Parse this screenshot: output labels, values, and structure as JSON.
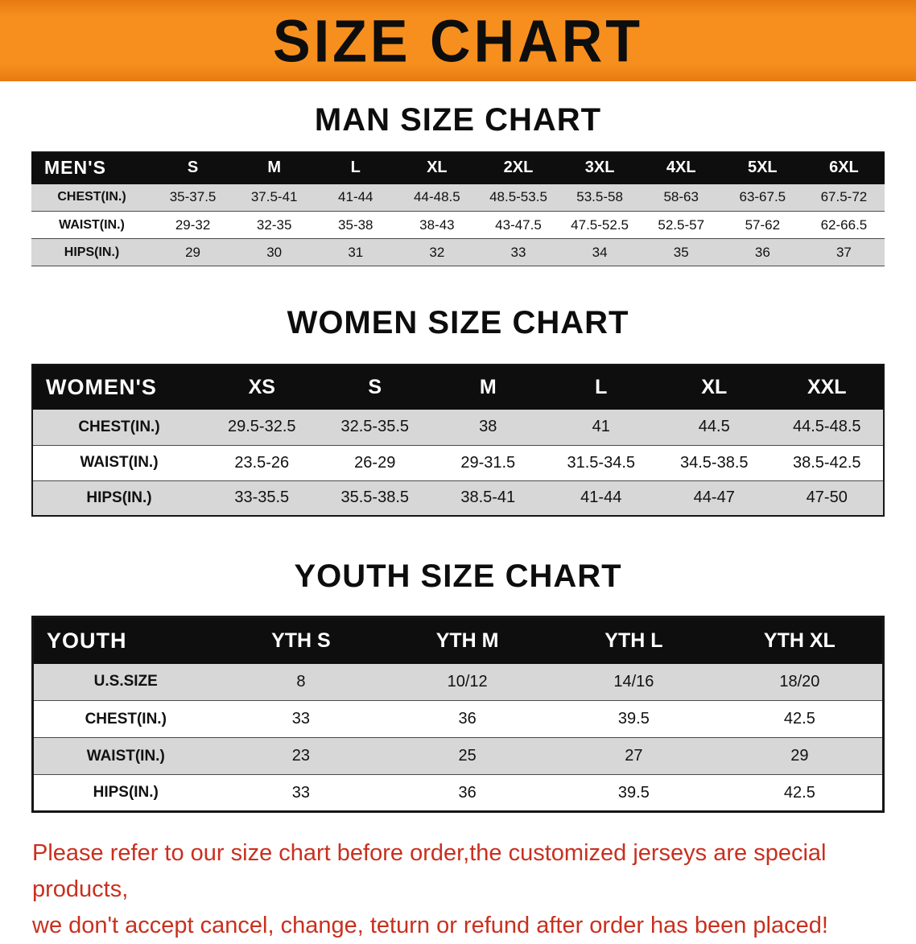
{
  "banner": {
    "title": "SIZE CHART",
    "background_color": "#f78f1e",
    "text_color": "#0d0d0d"
  },
  "chart_data": [
    {
      "type": "table",
      "title": "MAN SIZE CHART",
      "columns": [
        "MEN'S",
        "S",
        "M",
        "L",
        "XL",
        "2XL",
        "3XL",
        "4XL",
        "5XL",
        "6XL"
      ],
      "rows": [
        [
          "CHEST(IN.)",
          "35-37.5",
          "37.5-41",
          "41-44",
          "44-48.5",
          "48.5-53.5",
          "53.5-58",
          "58-63",
          "63-67.5",
          "67.5-72"
        ],
        [
          "WAIST(IN.)",
          "29-32",
          "32-35",
          "35-38",
          "38-43",
          "43-47.5",
          "47.5-52.5",
          "52.5-57",
          "57-62",
          "62-66.5"
        ],
        [
          "HIPS(IN.)",
          "29",
          "30",
          "31",
          "32",
          "33",
          "34",
          "35",
          "36",
          "37"
        ]
      ]
    },
    {
      "type": "table",
      "title": "WOMEN SIZE CHART",
      "columns": [
        "WOMEN'S",
        "XS",
        "S",
        "M",
        "L",
        "XL",
        "XXL"
      ],
      "rows": [
        [
          "CHEST(IN.)",
          "29.5-32.5",
          "32.5-35.5",
          "38",
          "41",
          "44.5",
          "44.5-48.5"
        ],
        [
          "WAIST(IN.)",
          "23.5-26",
          "26-29",
          "29-31.5",
          "31.5-34.5",
          "34.5-38.5",
          "38.5-42.5"
        ],
        [
          "HIPS(IN.)",
          "33-35.5",
          "35.5-38.5",
          "38.5-41",
          "41-44",
          "44-47",
          "47-50"
        ]
      ]
    },
    {
      "type": "table",
      "title": "YOUTH SIZE CHART",
      "columns": [
        "YOUTH",
        "YTH S",
        "YTH M",
        "YTH L",
        "YTH XL"
      ],
      "rows": [
        [
          "U.S.SIZE",
          "8",
          "10/12",
          "14/16",
          "18/20"
        ],
        [
          "CHEST(IN.)",
          "33",
          "36",
          "39.5",
          "42.5"
        ],
        [
          "WAIST(IN.)",
          "23",
          "25",
          "27",
          "29"
        ],
        [
          "HIPS(IN.)",
          "33",
          "36",
          "39.5",
          "42.5"
        ]
      ]
    }
  ],
  "footer": {
    "text_color": "#c9301f",
    "line1": "Please refer to our size chart before order,the customized jerseys are special products,",
    "line2": "we don't accept cancel, change, teturn or refund after order has been placed!"
  }
}
